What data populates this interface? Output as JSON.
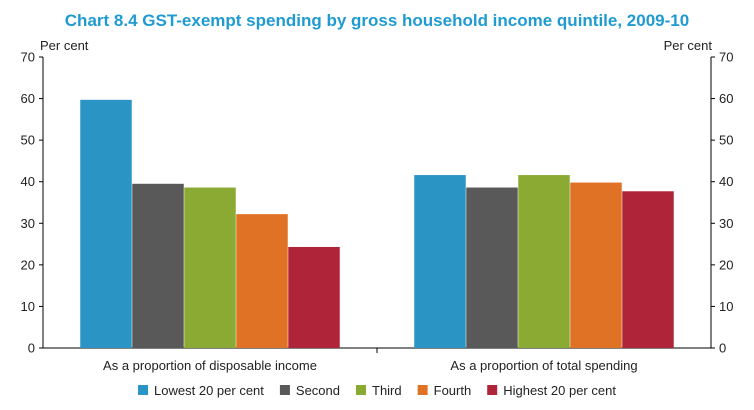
{
  "chart_data": {
    "type": "bar",
    "title": "Chart 8.4 GST-exempt spending by gross household income quintile, 2009-10",
    "ylabel_left": "Per cent",
    "ylabel_right": "Per cent",
    "ylim": [
      0,
      70
    ],
    "yticks": [
      0,
      10,
      20,
      30,
      40,
      50,
      60,
      70
    ],
    "categories": [
      "As a proportion of disposable income",
      "As a proportion of total spending"
    ],
    "series": [
      {
        "name": "Lowest 20 per cent",
        "color": "#2a95c4",
        "values": [
          59.7,
          41.6
        ]
      },
      {
        "name": "Second",
        "color": "#595959",
        "values": [
          39.5,
          38.6
        ]
      },
      {
        "name": "Third",
        "color": "#8aaa33",
        "values": [
          38.6,
          41.6
        ]
      },
      {
        "name": "Fourth",
        "color": "#df7224",
        "values": [
          32.2,
          39.8
        ]
      },
      {
        "name": "Highest 20 per cent",
        "color": "#b0243a",
        "values": [
          24.3,
          37.7
        ]
      }
    ],
    "legend_position": "bottom",
    "grid": false
  }
}
